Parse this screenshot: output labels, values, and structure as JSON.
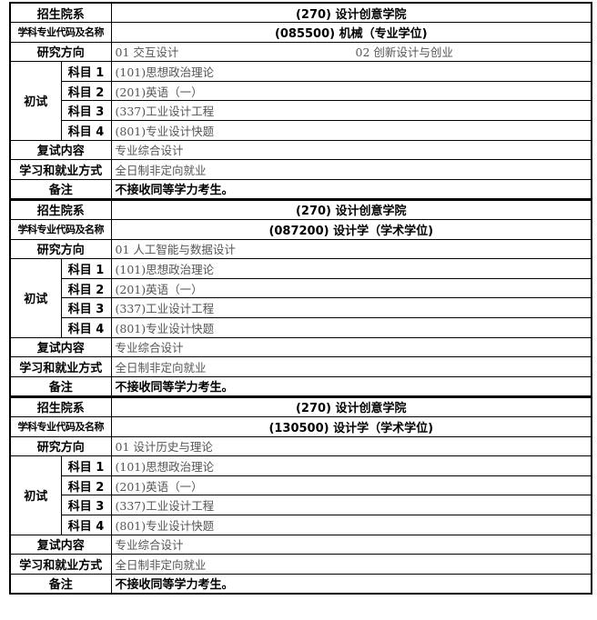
{
  "labels": {
    "department": "招生院系",
    "major": "学科专业代码及名称",
    "direction": "研究方向",
    "initial_exam": "初试",
    "subjects": [
      "科目 1",
      "科目 2",
      "科目 3",
      "科目 4"
    ],
    "retest": "复试内容",
    "study_mode": "学习和就业方式",
    "remarks": "备注"
  },
  "programs": [
    {
      "department": "(270) 设计创意学院",
      "major": "(085500) 机械（专业学位)",
      "directions": [
        "01  交互设计",
        "02  创新设计与创业"
      ],
      "subjects": [
        "(101)思想政治理论",
        "(201)英语（一）",
        "(337)工业设计工程",
        "(801)专业设计快题"
      ],
      "retest": "专业综合设计",
      "study_mode": "全日制非定向就业",
      "remarks": "不接收同等学力考生。"
    },
    {
      "department": "(270) 设计创意学院",
      "major": "(087200) 设计学（学术学位)",
      "directions": [
        "01  人工智能与数据设计"
      ],
      "subjects": [
        "(101)思想政治理论",
        "(201)英语（一）",
        "(337)工业设计工程",
        "(801)专业设计快题"
      ],
      "retest": "专业综合设计",
      "study_mode": "全日制非定向就业",
      "remarks": "不接收同等学力考生。"
    },
    {
      "department": "(270) 设计创意学院",
      "major": "(130500) 设计学（学术学位)",
      "directions": [
        "01  设计历史与理论"
      ],
      "subjects": [
        "(101)思想政治理论",
        "(201)英语（一）",
        "(337)工业设计工程",
        "(801)专业设计快题"
      ],
      "retest": "专业综合设计",
      "study_mode": "全日制非定向就业",
      "remarks": "不接收同等学力考生。"
    }
  ]
}
